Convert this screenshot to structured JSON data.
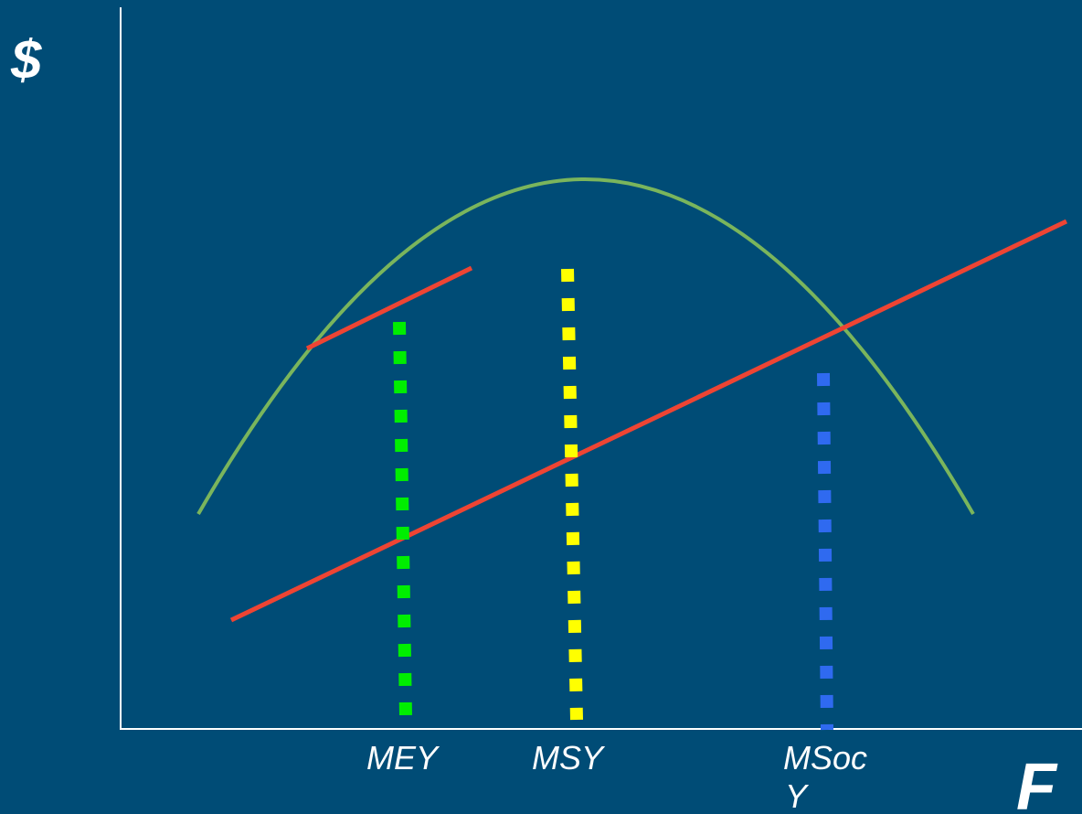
{
  "axes": {
    "y_label": "$",
    "x_label": "F"
  },
  "markers": [
    {
      "id": "mey",
      "label": "MEY",
      "color": "#00ee00"
    },
    {
      "id": "msy",
      "label": "MSY",
      "color": "#ffff00"
    },
    {
      "id": "msocy",
      "label_line1": "MSoc",
      "label_line2": "Y",
      "color": "#2f6af0"
    }
  ],
  "curves": {
    "revenue_curve_color": "#7ab55c",
    "cost_line_color": "#ee4433",
    "tangent_line_color": "#ee4433"
  },
  "colors": {
    "background": "#004c76",
    "axis": "#ffffff",
    "text": "#ffffff"
  }
}
